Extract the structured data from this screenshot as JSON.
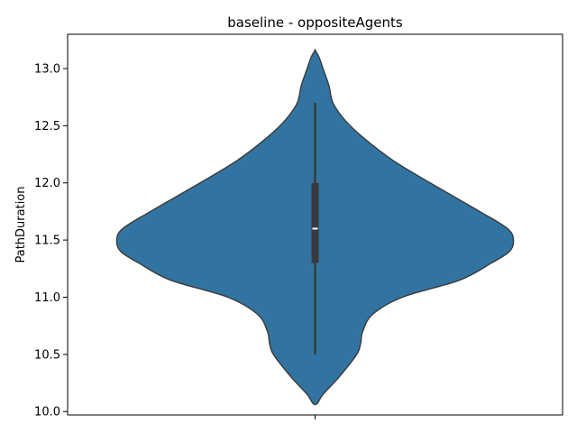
{
  "chart_data": {
    "type": "violin",
    "title": "baseline - oppositeAgents",
    "xlabel": "",
    "ylabel": "PathDuration",
    "ylim": [
      9.97,
      13.3
    ],
    "yticks": [
      10.0,
      10.5,
      11.0,
      11.5,
      12.0,
      12.5,
      13.0
    ],
    "ytick_labels": [
      "10.0",
      "10.5",
      "11.0",
      "11.5",
      "12.0",
      "12.5",
      "13.0"
    ],
    "violin_color": "#3274a1",
    "edge_color": "#3a3a3a",
    "density_profile": [
      {
        "y": 10.07,
        "w": 0.01
      },
      {
        "y": 10.15,
        "w": 0.04
      },
      {
        "y": 10.3,
        "w": 0.12
      },
      {
        "y": 10.5,
        "w": 0.21
      },
      {
        "y": 10.6,
        "w": 0.23
      },
      {
        "y": 10.7,
        "w": 0.24
      },
      {
        "y": 10.85,
        "w": 0.29
      },
      {
        "y": 11.0,
        "w": 0.44
      },
      {
        "y": 11.15,
        "w": 0.73
      },
      {
        "y": 11.3,
        "w": 0.89
      },
      {
        "y": 11.4,
        "w": 0.98
      },
      {
        "y": 11.5,
        "w": 1.0
      },
      {
        "y": 11.6,
        "w": 0.97
      },
      {
        "y": 11.75,
        "w": 0.83
      },
      {
        "y": 12.0,
        "w": 0.58
      },
      {
        "y": 12.2,
        "w": 0.39
      },
      {
        "y": 12.4,
        "w": 0.24
      },
      {
        "y": 12.55,
        "w": 0.15
      },
      {
        "y": 12.7,
        "w": 0.09
      },
      {
        "y": 12.85,
        "w": 0.07
      },
      {
        "y": 13.0,
        "w": 0.04
      },
      {
        "y": 13.1,
        "w": 0.02
      },
      {
        "y": 13.16,
        "w": 0.0
      }
    ],
    "box": {
      "whisker_low": 10.5,
      "q1": 11.3,
      "median": 11.6,
      "q3": 12.0,
      "whisker_high": 12.7
    }
  }
}
